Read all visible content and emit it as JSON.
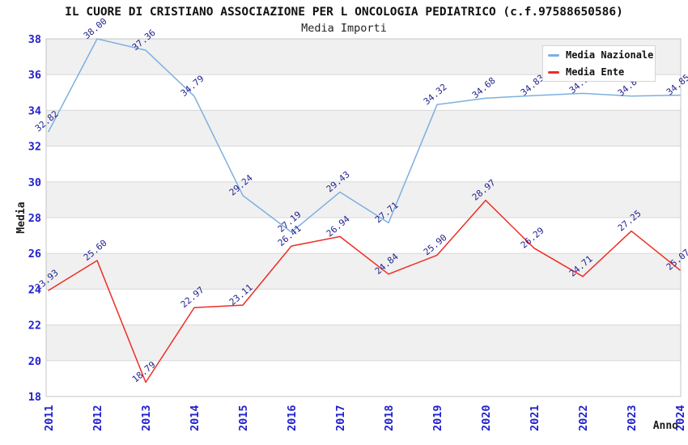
{
  "title": "IL CUORE DI CRISTIANO ASSOCIAZIONE PER L ONCOLOGIA PEDIATRICO (c.f.97588650586)",
  "subtitle": "Media Importi",
  "legend": {
    "items": [
      {
        "label": "Media Nazionale",
        "color": "#7dafe0"
      },
      {
        "label": "Media Ente",
        "color": "#ee2d24"
      }
    ]
  },
  "axes": {
    "y_label": "Media",
    "x_label": "Anno",
    "y_ticks": [
      18,
      20,
      22,
      24,
      26,
      28,
      30,
      32,
      34,
      36,
      38
    ],
    "x_ticks": [
      "2011",
      "2012",
      "2013",
      "2014",
      "2015",
      "2016",
      "2017",
      "2018",
      "2019",
      "2020",
      "2021",
      "2022",
      "2023",
      "2024"
    ]
  },
  "colors": {
    "national_line": "#7dafe0",
    "entity_line": "#ee2d24",
    "tick_label": "#2222cc",
    "data_label": "#1f1f8f",
    "band_gray": "#f0f0f0",
    "band_white": "#ffffff",
    "gridline": "#d8d8d8",
    "plot_border": "#c4c4c4"
  },
  "chart_data": {
    "type": "line",
    "title": "IL CUORE DI CRISTIANO ASSOCIAZIONE PER L ONCOLOGIA PEDIATRICO (c.f.97588650586)",
    "subtitle": "Media Importi",
    "xlabel": "Anno",
    "ylabel": "Media",
    "x": [
      2011,
      2012,
      2013,
      2014,
      2015,
      2016,
      2017,
      2018,
      2019,
      2020,
      2021,
      2022,
      2023,
      2024
    ],
    "ylim": [
      18,
      38
    ],
    "grid": "horizontal-bands",
    "legend_position": "top-right",
    "series": [
      {
        "name": "Media Nazionale",
        "color": "#7dafe0",
        "values": [
          32.82,
          38.0,
          37.36,
          34.79,
          29.24,
          27.19,
          29.43,
          27.71,
          34.32,
          34.68,
          34.83,
          34.95,
          34.8,
          34.85
        ],
        "labels": [
          "32.82",
          "38.00",
          "37.36",
          "34.79",
          "29.24",
          "27.19",
          "29.43",
          "27.71",
          "34.32",
          "34.68",
          "34.83",
          "34.95",
          "34.80",
          "34.85"
        ]
      },
      {
        "name": "Media Ente",
        "color": "#ee2d24",
        "values": [
          23.93,
          25.6,
          18.79,
          22.97,
          23.11,
          26.41,
          26.94,
          24.84,
          25.9,
          28.97,
          26.29,
          24.71,
          27.25,
          25.07
        ],
        "labels": [
          "23.93",
          "25.60",
          "18.79",
          "22.97",
          "23.11",
          "26.41",
          "26.94",
          "24.84",
          "25.90",
          "28.97",
          "26.29",
          "24.71",
          "27.25",
          "25.07"
        ]
      }
    ]
  }
}
